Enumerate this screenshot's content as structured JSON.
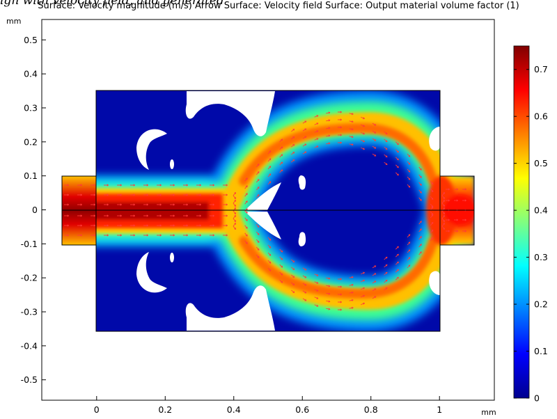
{
  "figure_caption": "ign with velocity field, and generated",
  "chart_data": {
    "type": "heatmap",
    "title": "Surface: Velocity magnitude (m/s)  Arrow Surface: Velocity field  Surface: Output material volume factor (1)",
    "x_unit": "mm",
    "y_unit": "mm",
    "xlim": [
      -0.16,
      1.16
    ],
    "ylim": [
      -0.56,
      0.56
    ],
    "x_ticks": [
      "0",
      "0.2",
      "0.4",
      "0.6",
      "0.8",
      "1"
    ],
    "y_ticks": [
      "-0.5",
      "-0.4",
      "-0.3",
      "-0.2",
      "-0.1",
      "0",
      "0.1",
      "0.2",
      "0.3",
      "0.4",
      "0.5"
    ],
    "colorbar": {
      "min": 0,
      "max": 0.75,
      "ticks": [
        "0",
        "0.1",
        "0.2",
        "0.3",
        "0.4",
        "0.5",
        "0.6",
        "0.7"
      ],
      "colormap": "rainbow (dark blue to dark red)"
    },
    "domain": {
      "main_box": {
        "x": [
          0,
          1
        ],
        "y": [
          -0.35,
          0.35
        ]
      },
      "inlet_channel": {
        "x": [
          -0.1,
          0
        ],
        "y": [
          -0.1,
          0.1
        ]
      },
      "outlet_channel": {
        "x": [
          1,
          1.1
        ],
        "y": [
          -0.1,
          0.1
        ]
      },
      "symmetry_line_y": 0
    },
    "grid": false
  }
}
